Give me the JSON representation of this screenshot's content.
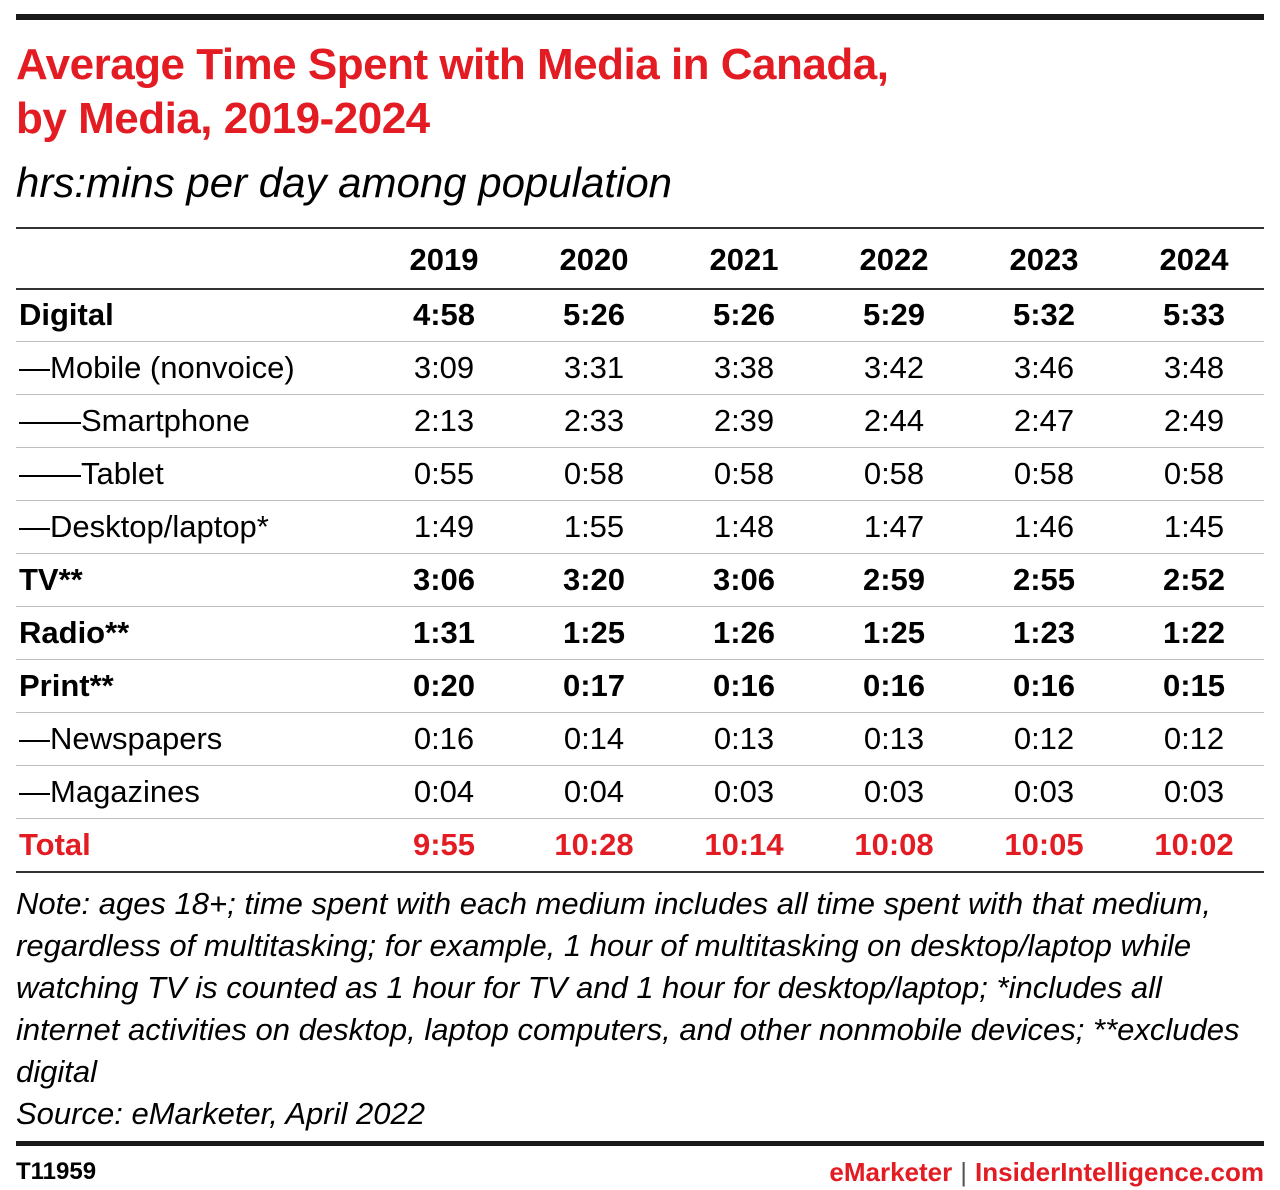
{
  "title_line1": "Average Time Spent with Media in Canada,",
  "title_line2": "by Media, 2019-2024",
  "subtitle": "hrs:mins per day among population",
  "chart_data": {
    "type": "table",
    "columns": [
      "2019",
      "2020",
      "2021",
      "2022",
      "2023",
      "2024"
    ],
    "rows": [
      {
        "label": "Digital",
        "bold": true,
        "values": [
          "4:58",
          "5:26",
          "5:26",
          "5:29",
          "5:32",
          "5:33"
        ]
      },
      {
        "label": "—Mobile (nonvoice)",
        "bold": false,
        "values": [
          "3:09",
          "3:31",
          "3:38",
          "3:42",
          "3:46",
          "3:48"
        ]
      },
      {
        "label": "——Smartphone",
        "bold": false,
        "values": [
          "2:13",
          "2:33",
          "2:39",
          "2:44",
          "2:47",
          "2:49"
        ]
      },
      {
        "label": "——Tablet",
        "bold": false,
        "values": [
          "0:55",
          "0:58",
          "0:58",
          "0:58",
          "0:58",
          "0:58"
        ]
      },
      {
        "label": "—Desktop/laptop*",
        "bold": false,
        "values": [
          "1:49",
          "1:55",
          "1:48",
          "1:47",
          "1:46",
          "1:45"
        ]
      },
      {
        "label": "TV**",
        "bold": true,
        "values": [
          "3:06",
          "3:20",
          "3:06",
          "2:59",
          "2:55",
          "2:52"
        ]
      },
      {
        "label": "Radio**",
        "bold": true,
        "values": [
          "1:31",
          "1:25",
          "1:26",
          "1:25",
          "1:23",
          "1:22"
        ]
      },
      {
        "label": "Print**",
        "bold": true,
        "values": [
          "0:20",
          "0:17",
          "0:16",
          "0:16",
          "0:16",
          "0:15"
        ]
      },
      {
        "label": "—Newspapers",
        "bold": false,
        "values": [
          "0:16",
          "0:14",
          "0:13",
          "0:13",
          "0:12",
          "0:12"
        ]
      },
      {
        "label": "—Magazines",
        "bold": false,
        "values": [
          "0:04",
          "0:04",
          "0:03",
          "0:03",
          "0:03",
          "0:03"
        ]
      },
      {
        "label": "Total",
        "bold": true,
        "total": true,
        "values": [
          "9:55",
          "10:28",
          "10:14",
          "10:08",
          "10:05",
          "10:02"
        ]
      }
    ]
  },
  "note": "Note: ages 18+; time spent with each medium includes all time spent with that medium, regardless of multitasking; for example, 1 hour of multitasking on desktop/laptop while watching TV is counted as 1 hour for TV and 1 hour for desktop/laptop; *includes all internet activities on desktop, laptop computers, and other nonmobile devices; **excludes digital",
  "source": "Source: eMarketer, April 2022",
  "footer": {
    "id": "T11959",
    "brand_left": "eMarketer",
    "separator": "|",
    "brand_right": "InsiderIntelligence.com"
  },
  "colors": {
    "accent": "#e31b23",
    "text": "#000000",
    "rule": "#1a1a1a"
  }
}
